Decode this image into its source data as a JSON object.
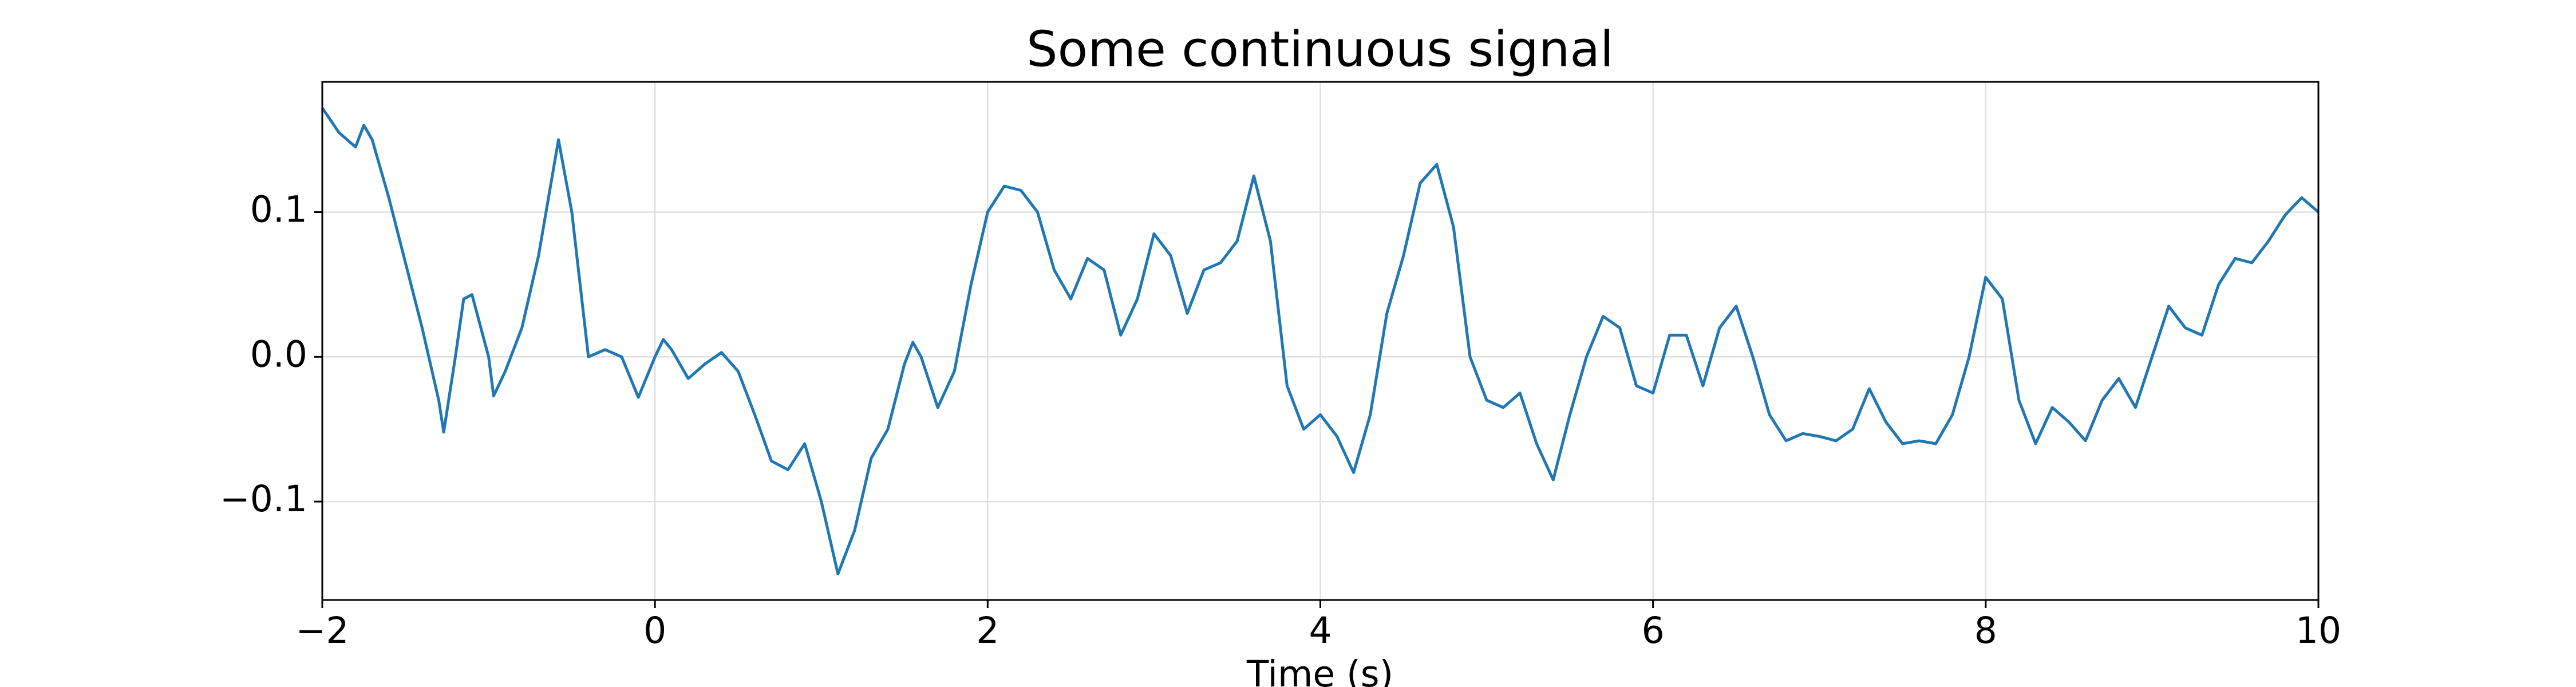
{
  "chart_data": {
    "type": "line",
    "title": "Some continuous signal",
    "x_label": "Time (s)",
    "x": [
      -2.0,
      -1.9,
      -1.8,
      -1.75,
      -1.7,
      -1.6,
      -1.5,
      -1.4,
      -1.3,
      -1.27,
      -1.2,
      -1.15,
      -1.1,
      -1.0,
      -0.97,
      -0.9,
      -0.8,
      -0.7,
      -0.58,
      -0.5,
      -0.4,
      -0.3,
      -0.2,
      -0.1,
      0.0,
      0.05,
      0.1,
      0.2,
      0.3,
      0.4,
      0.5,
      0.6,
      0.7,
      0.8,
      0.9,
      1.0,
      1.1,
      1.2,
      1.3,
      1.4,
      1.5,
      1.55,
      1.6,
      1.7,
      1.8,
      1.9,
      2.0,
      2.1,
      2.2,
      2.3,
      2.4,
      2.5,
      2.6,
      2.7,
      2.8,
      2.9,
      3.0,
      3.1,
      3.2,
      3.3,
      3.4,
      3.5,
      3.6,
      3.7,
      3.8,
      3.9,
      4.0,
      4.1,
      4.2,
      4.3,
      4.4,
      4.5,
      4.6,
      4.7,
      4.8,
      4.9,
      5.0,
      5.1,
      5.2,
      5.3,
      5.4,
      5.5,
      5.6,
      5.7,
      5.8,
      5.9,
      6.0,
      6.1,
      6.2,
      6.3,
      6.4,
      6.5,
      6.6,
      6.7,
      6.8,
      6.9,
      7.0,
      7.1,
      7.2,
      7.3,
      7.4,
      7.5,
      7.6,
      7.7,
      7.8,
      7.9,
      8.0,
      8.1,
      8.2,
      8.3,
      8.4,
      8.5,
      8.6,
      8.7,
      8.8,
      8.9,
      9.0,
      9.1,
      9.2,
      9.3,
      9.4,
      9.5,
      9.6,
      9.7,
      9.8,
      9.9,
      10.0
    ],
    "values": [
      0.172,
      0.155,
      0.145,
      0.16,
      0.15,
      0.11,
      0.065,
      0.02,
      -0.03,
      -0.052,
      0.0,
      0.04,
      0.043,
      0.0,
      -0.027,
      -0.01,
      0.02,
      0.07,
      0.15,
      0.1,
      0.0,
      0.005,
      0.0,
      -0.028,
      0.0,
      0.012,
      0.005,
      -0.015,
      -0.005,
      0.003,
      -0.01,
      -0.04,
      -0.072,
      -0.078,
      -0.06,
      -0.1,
      -0.15,
      -0.12,
      -0.07,
      -0.05,
      -0.005,
      0.01,
      0.0,
      -0.035,
      -0.01,
      0.05,
      0.1,
      0.118,
      0.115,
      0.1,
      0.06,
      0.04,
      0.068,
      0.06,
      0.015,
      0.04,
      0.085,
      0.07,
      0.03,
      0.06,
      0.065,
      0.08,
      0.125,
      0.08,
      -0.02,
      -0.05,
      -0.04,
      -0.055,
      -0.08,
      -0.04,
      0.03,
      0.07,
      0.12,
      0.133,
      0.09,
      0.0,
      -0.03,
      -0.035,
      -0.025,
      -0.06,
      -0.085,
      -0.04,
      0.0,
      0.028,
      0.02,
      -0.02,
      -0.025,
      0.015,
      0.015,
      -0.02,
      0.02,
      0.035,
      0.0,
      -0.04,
      -0.058,
      -0.053,
      -0.055,
      -0.058,
      -0.05,
      -0.022,
      -0.045,
      -0.06,
      -0.058,
      -0.06,
      -0.04,
      0.0,
      0.055,
      0.04,
      -0.03,
      -0.06,
      -0.035,
      -0.045,
      -0.058,
      -0.03,
      -0.015,
      -0.035,
      0.0,
      0.035,
      0.02,
      0.015,
      0.05,
      0.068,
      0.065,
      0.08,
      0.098,
      0.11,
      0.1
    ],
    "color": "#1f77b4",
    "xlim": [
      -2,
      10
    ],
    "xticks": [
      {
        "value": -2,
        "label": "−2"
      },
      0,
      2,
      4,
      6,
      8,
      10
    ],
    "ylim": [
      -0.168,
      0.19
    ],
    "yticks": [
      {
        "value": -0.1,
        "label": "−0.1"
      },
      {
        "value": 0,
        "label": "0.0"
      },
      0.1
    ],
    "grid": true
  }
}
